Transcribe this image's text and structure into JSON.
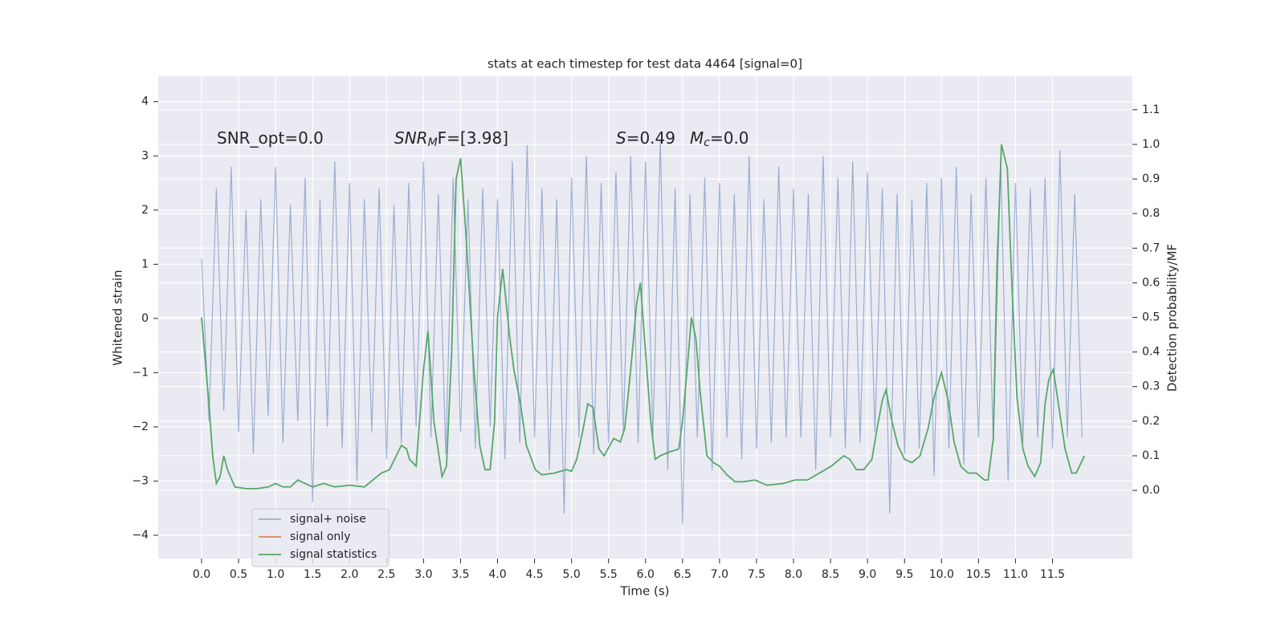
{
  "chart_data": {
    "type": "line",
    "title": "stats at each timestep for test data 4464 [signal=0]",
    "xlabel": "Time (s)",
    "ylabel": "Whitened strain",
    "y2label": "Detection probability/MF",
    "annotations": [
      [
        {
          "text": "SNR_opt=0.0",
          "style": "normal"
        }
      ],
      [
        {
          "text": "SNR",
          "style": "italic"
        },
        {
          "text": "M",
          "style": "sub"
        },
        {
          "text": "F=[3.98]",
          "style": "normal"
        }
      ],
      [
        {
          "text": "S",
          "style": "italic"
        },
        {
          "text": "=0.49",
          "style": "normal"
        }
      ],
      [
        {
          "text": "M",
          "style": "italic"
        },
        {
          "text": "c",
          "style": "sub"
        },
        {
          "text": "=0.0",
          "style": "normal"
        }
      ]
    ],
    "xlim": [
      -0.586,
      12.58
    ],
    "ylim": [
      -4.43,
      4.47
    ],
    "y2lim": [
      -0.197,
      1.197
    ],
    "xticks": [
      {
        "value": 0,
        "label": "0.0"
      },
      0.5,
      {
        "value": 1,
        "label": "1.0"
      },
      1.5,
      {
        "value": 2,
        "label": "2.0"
      },
      2.5,
      {
        "value": 3,
        "label": "3.0"
      },
      3.5,
      {
        "value": 4,
        "label": "4.0"
      },
      4.5,
      {
        "value": 5,
        "label": "5.0"
      },
      5.5,
      {
        "value": 6,
        "label": "6.0"
      },
      6.5,
      {
        "value": 7,
        "label": "7.0"
      },
      7.5,
      {
        "value": 8,
        "label": "8.0"
      },
      8.5,
      {
        "value": 9,
        "label": "9.0"
      },
      9.5,
      {
        "value": 10,
        "label": "10.0"
      },
      10.5,
      {
        "value": 11,
        "label": "11.0"
      },
      11.5
    ],
    "yticks": [
      {
        "value": -4,
        "label": "−4"
      },
      {
        "value": -3,
        "label": "−3"
      },
      {
        "value": -2,
        "label": "−2"
      },
      {
        "value": -1,
        "label": "−1"
      },
      0,
      1,
      2,
      3,
      4
    ],
    "y2ticks": [
      {
        "value": 0,
        "label": "0.0"
      },
      0.1,
      0.2,
      0.3,
      0.4,
      0.5,
      0.6,
      0.7,
      0.8,
      0.9,
      {
        "value": 1,
        "label": "1.0"
      },
      1.1
    ],
    "grid": true,
    "legend": "lower left",
    "background": "#eaeaf2",
    "series": [
      {
        "name": "signal+ noise",
        "color": "#4c72b0",
        "opacity": 0.5,
        "axis": "y",
        "x": [
          0.0,
          0.1,
          0.2,
          0.3,
          0.4,
          0.5,
          0.6,
          0.7,
          0.8,
          0.9,
          1.0,
          1.1,
          1.2,
          1.3,
          1.4,
          1.5,
          1.6,
          1.7,
          1.8,
          1.9,
          2.0,
          2.1,
          2.2,
          2.3,
          2.4,
          2.5,
          2.6,
          2.7,
          2.8,
          2.9,
          3.0,
          3.1,
          3.2,
          3.3,
          3.4,
          3.5,
          3.6,
          3.7,
          3.8,
          3.9,
          4.0,
          4.1,
          4.2,
          4.3,
          4.4,
          4.5,
          4.6,
          4.7,
          4.8,
          4.9,
          5.0,
          5.1,
          5.2,
          5.3,
          5.4,
          5.5,
          5.6,
          5.7,
          5.8,
          5.9,
          6.0,
          6.1,
          6.2,
          6.3,
          6.4,
          6.5,
          6.6,
          6.7,
          6.8,
          6.9,
          7.0,
          7.1,
          7.2,
          7.3,
          7.4,
          7.5,
          7.6,
          7.7,
          7.8,
          7.9,
          8.0,
          8.1,
          8.2,
          8.3,
          8.4,
          8.5,
          8.6,
          8.7,
          8.8,
          8.9,
          9.0,
          9.1,
          9.2,
          9.3,
          9.4,
          9.5,
          9.6,
          9.7,
          9.8,
          9.9,
          10.0,
          10.1,
          10.2,
          10.3,
          10.4,
          10.5,
          10.6,
          10.7,
          10.8,
          10.9,
          11.0,
          11.1,
          11.2,
          11.3,
          11.4,
          11.5,
          11.6,
          11.7,
          11.8,
          11.9
        ],
        "values": [
          1.1,
          -1.9,
          2.4,
          -1.7,
          2.8,
          -2.1,
          2.0,
          -2.5,
          2.2,
          -1.8,
          2.8,
          -2.3,
          2.1,
          -1.9,
          2.6,
          -3.4,
          2.2,
          -2.0,
          2.9,
          -2.4,
          2.5,
          -3.0,
          2.2,
          -2.1,
          2.4,
          -2.6,
          2.1,
          -2.3,
          2.5,
          -2.0,
          2.9,
          -2.2,
          2.3,
          -2.5,
          2.6,
          -2.1,
          2.2,
          -2.4,
          2.4,
          -2.0,
          2.2,
          -2.6,
          2.9,
          -2.3,
          3.2,
          -2.2,
          2.4,
          -2.8,
          2.2,
          -3.6,
          2.6,
          -2.2,
          3.0,
          -2.5,
          2.5,
          -2.3,
          2.7,
          -2.1,
          3.0,
          -2.3,
          2.9,
          -2.2,
          3.3,
          -2.8,
          2.4,
          -3.8,
          2.3,
          -2.2,
          2.6,
          -2.8,
          2.5,
          -2.2,
          2.3,
          -2.6,
          3.0,
          -2.4,
          2.2,
          -2.3,
          2.8,
          -2.2,
          2.4,
          -2.2,
          2.3,
          -2.8,
          3.0,
          -2.2,
          2.6,
          -2.4,
          2.9,
          -2.3,
          2.7,
          -2.1,
          2.4,
          -3.6,
          2.3,
          -2.5,
          2.2,
          -2.4,
          2.5,
          -2.9,
          2.6,
          -2.4,
          2.8,
          -2.7,
          2.3,
          -2.2,
          2.6,
          -2.3,
          2.9,
          -3.0,
          2.5,
          -2.3,
          2.4,
          -2.2,
          2.6,
          -2.4,
          3.1,
          -2.2,
          2.3,
          -2.2
        ]
      },
      {
        "name": "signal only",
        "color": "#dd8452",
        "axis": "y",
        "x": [],
        "values": []
      },
      {
        "name": "signal statistics",
        "color": "#55a868",
        "axis": "y2",
        "x": [
          0,
          0.1,
          0.15,
          0.2,
          0.25,
          0.3,
          0.35,
          0.45,
          0.6,
          0.75,
          0.9,
          1.0,
          1.1,
          1.2,
          1.3,
          1.4,
          1.5,
          1.65,
          1.8,
          2.0,
          2.2,
          2.43,
          2.54,
          2.7,
          2.77,
          2.81,
          2.9,
          3.0,
          3.06,
          3.14,
          3.25,
          3.31,
          3.38,
          3.44,
          3.5,
          3.57,
          3.68,
          3.76,
          3.83,
          3.9,
          3.96,
          4.0,
          4.07,
          4.16,
          4.22,
          4.31,
          4.39,
          4.51,
          4.6,
          4.77,
          4.93,
          5.0,
          5.07,
          5.15,
          5.22,
          5.29,
          5.37,
          5.44,
          5.57,
          5.66,
          5.72,
          5.8,
          5.88,
          5.93,
          6.0,
          6.07,
          6.13,
          6.2,
          6.31,
          6.45,
          6.5,
          6.57,
          6.62,
          6.68,
          6.74,
          6.83,
          6.92,
          7.0,
          7.1,
          7.21,
          7.32,
          7.48,
          7.64,
          7.86,
          8.02,
          8.19,
          8.35,
          8.51,
          8.68,
          8.76,
          8.85,
          8.95,
          9.06,
          9.13,
          9.2,
          9.25,
          9.33,
          9.41,
          9.5,
          9.6,
          9.71,
          9.82,
          9.9,
          10.0,
          10.09,
          10.17,
          10.26,
          10.36,
          10.47,
          10.58,
          10.63,
          10.7,
          10.75,
          10.81,
          10.89,
          10.95,
          11.02,
          11.1,
          11.17,
          11.26,
          11.34,
          11.4,
          11.45,
          11.51,
          11.58,
          11.67,
          11.76,
          11.82,
          11.91,
          11.93
        ],
        "values": [
          0.5,
          0.25,
          0.1,
          0.02,
          0.04,
          0.1,
          0.06,
          0.01,
          0.005,
          0.005,
          0.01,
          0.02,
          0.01,
          0.01,
          0.03,
          0.02,
          0.01,
          0.02,
          0.01,
          0.015,
          0.01,
          0.05,
          0.06,
          0.13,
          0.12,
          0.09,
          0.07,
          0.35,
          0.46,
          0.2,
          0.04,
          0.07,
          0.4,
          0.9,
          0.96,
          0.75,
          0.35,
          0.13,
          0.06,
          0.06,
          0.2,
          0.5,
          0.64,
          0.45,
          0.35,
          0.25,
          0.13,
          0.06,
          0.045,
          0.05,
          0.06,
          0.055,
          0.09,
          0.17,
          0.25,
          0.24,
          0.12,
          0.1,
          0.15,
          0.14,
          0.18,
          0.35,
          0.54,
          0.6,
          0.4,
          0.2,
          0.09,
          0.1,
          0.11,
          0.12,
          0.2,
          0.37,
          0.5,
          0.44,
          0.28,
          0.1,
          0.08,
          0.07,
          0.045,
          0.025,
          0.025,
          0.03,
          0.015,
          0.02,
          0.03,
          0.03,
          0.05,
          0.07,
          0.1,
          0.09,
          0.06,
          0.06,
          0.09,
          0.18,
          0.26,
          0.29,
          0.2,
          0.13,
          0.09,
          0.08,
          0.1,
          0.18,
          0.27,
          0.34,
          0.26,
          0.14,
          0.07,
          0.05,
          0.05,
          0.03,
          0.03,
          0.15,
          0.65,
          1.0,
          0.93,
          0.6,
          0.27,
          0.12,
          0.07,
          0.04,
          0.08,
          0.25,
          0.32,
          0.35,
          0.25,
          0.12,
          0.05,
          0.05,
          0.09,
          0.1
        ]
      }
    ]
  }
}
